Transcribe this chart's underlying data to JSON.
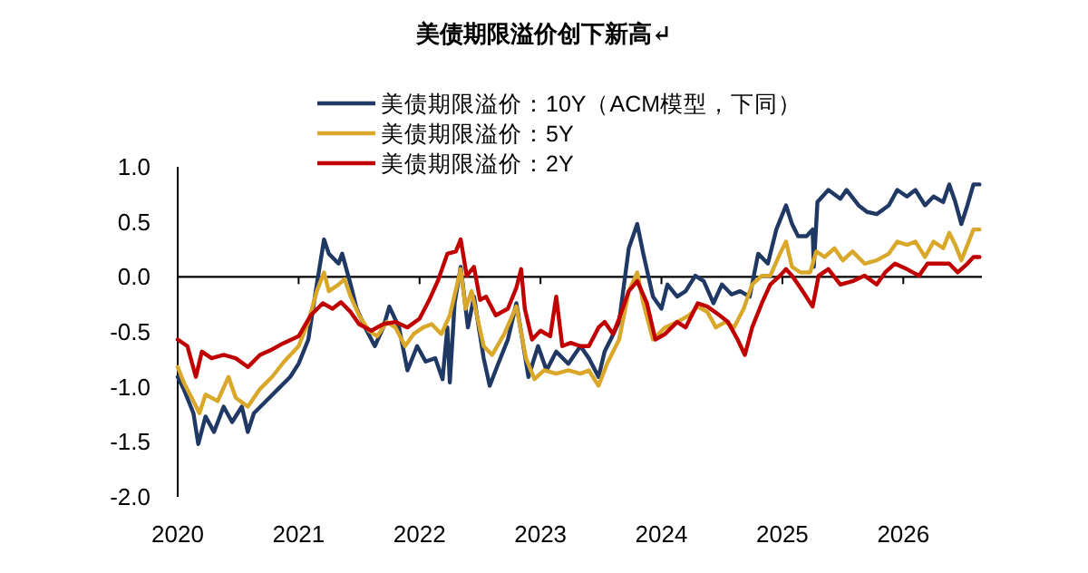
{
  "chart_data": {
    "type": "line",
    "title": "美债期限溢价创下新高↵",
    "xlim": [
      2020,
      2026.65
    ],
    "xticks": [
      2020,
      2021,
      2022,
      2023,
      2024,
      2025,
      2026
    ],
    "ylim": [
      -2,
      1
    ],
    "yticks": [
      {
        "value": -2,
        "label": "-2.0"
      },
      {
        "value": -1.5,
        "label": "-1.5"
      },
      {
        "value": -1,
        "label": "-1.0"
      },
      {
        "value": -0.5,
        "label": "-0.5"
      },
      {
        "value": 0,
        "label": "0.0"
      },
      {
        "value": 0.5,
        "label": "0.5"
      },
      {
        "value": 1,
        "label": "1.0"
      }
    ],
    "legend": "top",
    "marker": "none",
    "line_style": "solid",
    "series": [
      {
        "name": "美债期限溢价：10Y（ACM模型，下同）",
        "color": "#1f3864",
        "x": [
          2020.0,
          2020.05,
          2020.13,
          2020.17,
          2020.23,
          2020.3,
          2020.38,
          2020.45,
          2020.53,
          2020.58,
          2020.63,
          2020.73,
          2020.83,
          2020.93,
          2021.0,
          2021.08,
          2021.15,
          2021.21,
          2021.25,
          2021.33,
          2021.36,
          2021.43,
          2021.48,
          2021.55,
          2021.63,
          2021.7,
          2021.75,
          2021.83,
          2021.9,
          2021.98,
          2022.05,
          2022.13,
          2022.19,
          2022.23,
          2022.25,
          2022.29,
          2022.34,
          2022.4,
          2022.45,
          2022.53,
          2022.58,
          2022.65,
          2022.73,
          2022.8,
          2022.85,
          2022.9,
          2022.98,
          2023.05,
          2023.13,
          2023.23,
          2023.33,
          2023.4,
          2023.48,
          2023.53,
          2023.58,
          2023.65,
          2023.73,
          2023.8,
          2023.85,
          2023.93,
          2024.0,
          2024.05,
          2024.13,
          2024.2,
          2024.28,
          2024.35,
          2024.43,
          2024.5,
          2024.58,
          2024.65,
          2024.73,
          2024.8,
          2024.88,
          2024.95,
          2025.03,
          2025.08,
          2025.13,
          2025.2,
          2025.25,
          2025.26,
          2025.29,
          2025.38,
          2025.48,
          2025.53,
          2025.63,
          2025.7,
          2025.78,
          2025.88,
          2025.95,
          2026.03,
          2026.1,
          2026.18,
          2026.25,
          2026.33,
          2026.38,
          2026.43,
          2026.48,
          2026.53,
          2026.58,
          2026.63
        ],
        "values": [
          -0.91,
          -1.02,
          -1.24,
          -1.52,
          -1.27,
          -1.41,
          -1.18,
          -1.32,
          -1.18,
          -1.41,
          -1.24,
          -1.13,
          -1.02,
          -0.91,
          -0.79,
          -0.57,
          -0.07,
          0.34,
          0.21,
          0.12,
          0.21,
          -0.07,
          -0.29,
          -0.46,
          -0.63,
          -0.46,
          -0.27,
          -0.46,
          -0.85,
          -0.63,
          -0.77,
          -0.74,
          -0.93,
          -0.46,
          -0.96,
          -0.24,
          0.09,
          -0.46,
          -0.18,
          -0.74,
          -0.99,
          -0.79,
          -0.57,
          -0.24,
          -0.57,
          -0.91,
          -0.63,
          -0.85,
          -0.68,
          -0.79,
          -0.63,
          -0.74,
          -0.91,
          -0.68,
          -0.57,
          -0.41,
          0.26,
          0.48,
          0.21,
          -0.18,
          -0.29,
          -0.07,
          -0.18,
          -0.13,
          0.01,
          -0.04,
          -0.24,
          -0.07,
          -0.16,
          -0.13,
          -0.18,
          0.21,
          0.12,
          0.43,
          0.65,
          0.48,
          0.37,
          0.37,
          0.43,
          0.09,
          0.68,
          0.79,
          0.71,
          0.79,
          0.65,
          0.59,
          0.57,
          0.65,
          0.79,
          0.73,
          0.79,
          0.65,
          0.73,
          0.68,
          0.84,
          0.68,
          0.48,
          0.65,
          0.84,
          0.84
        ]
      },
      {
        "name": "美债期限溢价：5Y",
        "color": "#d9a72a",
        "x": [
          2020.0,
          2020.05,
          2020.13,
          2020.18,
          2020.23,
          2020.33,
          2020.42,
          2020.48,
          2020.58,
          2020.68,
          2020.78,
          2020.88,
          2021.0,
          2021.08,
          2021.15,
          2021.21,
          2021.25,
          2021.33,
          2021.38,
          2021.43,
          2021.5,
          2021.58,
          2021.65,
          2021.73,
          2021.8,
          2021.88,
          2021.95,
          2022.03,
          2022.1,
          2022.18,
          2022.25,
          2022.34,
          2022.38,
          2022.43,
          2022.53,
          2022.6,
          2022.7,
          2022.8,
          2022.88,
          2022.95,
          2023.03,
          2023.13,
          2023.23,
          2023.33,
          2023.4,
          2023.48,
          2023.55,
          2023.65,
          2023.73,
          2023.8,
          2023.85,
          2023.93,
          2024.03,
          2024.13,
          2024.23,
          2024.3,
          2024.38,
          2024.45,
          2024.53,
          2024.6,
          2024.68,
          2024.75,
          2024.83,
          2024.9,
          2024.98,
          2025.03,
          2025.08,
          2025.15,
          2025.23,
          2025.28,
          2025.35,
          2025.43,
          2025.5,
          2025.58,
          2025.68,
          2025.78,
          2025.88,
          2025.95,
          2026.03,
          2026.1,
          2026.18,
          2026.25,
          2026.33,
          2026.38,
          2026.43,
          2026.48,
          2026.53,
          2026.58,
          2026.63
        ],
        "values": [
          -0.82,
          -0.96,
          -1.13,
          -1.24,
          -1.07,
          -1.13,
          -0.91,
          -1.1,
          -1.18,
          -1.02,
          -0.91,
          -0.77,
          -0.63,
          -0.41,
          -0.13,
          0.04,
          -0.13,
          -0.07,
          -0.02,
          -0.18,
          -0.35,
          -0.49,
          -0.54,
          -0.41,
          -0.46,
          -0.63,
          -0.52,
          -0.46,
          -0.43,
          -0.52,
          -0.35,
          0.07,
          -0.29,
          -0.13,
          -0.63,
          -0.71,
          -0.52,
          -0.27,
          -0.74,
          -0.93,
          -0.85,
          -0.88,
          -0.85,
          -0.88,
          -0.85,
          -0.99,
          -0.79,
          -0.57,
          -0.13,
          0.04,
          -0.24,
          -0.57,
          -0.46,
          -0.41,
          -0.35,
          -0.27,
          -0.32,
          -0.46,
          -0.41,
          -0.46,
          -0.29,
          -0.07,
          0.01,
          0.01,
          0.21,
          0.32,
          0.09,
          0.04,
          0.04,
          0.23,
          0.18,
          0.26,
          0.15,
          0.23,
          0.12,
          0.15,
          0.21,
          0.32,
          0.29,
          0.32,
          0.18,
          0.32,
          0.26,
          0.4,
          0.29,
          0.15,
          0.29,
          0.43,
          0.43
        ]
      },
      {
        "name": "美债期限溢价：2Y",
        "color": "#c00000",
        "x": [
          2020.0,
          2020.08,
          2020.15,
          2020.2,
          2020.28,
          2020.38,
          2020.48,
          2020.58,
          2020.68,
          2020.78,
          2020.88,
          2021.0,
          2021.1,
          2021.2,
          2021.28,
          2021.35,
          2021.43,
          2021.5,
          2021.6,
          2021.7,
          2021.8,
          2021.9,
          2022.0,
          2022.08,
          2022.15,
          2022.23,
          2022.3,
          2022.34,
          2022.39,
          2022.45,
          2022.5,
          2022.55,
          2022.63,
          2022.73,
          2022.8,
          2022.84,
          2022.87,
          2022.93,
          2023.0,
          2023.08,
          2023.13,
          2023.18,
          2023.25,
          2023.33,
          2023.4,
          2023.48,
          2023.53,
          2023.6,
          2023.65,
          2023.73,
          2023.8,
          2023.88,
          2023.95,
          2024.03,
          2024.13,
          2024.2,
          2024.3,
          2024.38,
          2024.48,
          2024.55,
          2024.63,
          2024.69,
          2024.75,
          2024.83,
          2024.9,
          2024.98,
          2025.03,
          2025.08,
          2025.15,
          2025.25,
          2025.3,
          2025.38,
          2025.48,
          2025.58,
          2025.68,
          2025.78,
          2025.85,
          2025.93,
          2026.03,
          2026.13,
          2026.2,
          2026.3,
          2026.38,
          2026.45,
          2026.53,
          2026.58,
          2026.63
        ],
        "values": [
          -0.57,
          -0.63,
          -0.91,
          -0.68,
          -0.74,
          -0.71,
          -0.74,
          -0.82,
          -0.71,
          -0.66,
          -0.6,
          -0.54,
          -0.35,
          -0.24,
          -0.29,
          -0.23,
          -0.32,
          -0.43,
          -0.49,
          -0.43,
          -0.41,
          -0.46,
          -0.38,
          -0.21,
          -0.04,
          0.21,
          0.23,
          0.34,
          0.01,
          0.09,
          -0.21,
          -0.18,
          -0.35,
          -0.29,
          -0.1,
          0.07,
          -0.29,
          -0.57,
          -0.49,
          -0.54,
          -0.18,
          -0.63,
          -0.6,
          -0.63,
          -0.63,
          -0.46,
          -0.41,
          -0.52,
          -0.38,
          -0.13,
          -0.04,
          -0.24,
          -0.57,
          -0.52,
          -0.41,
          -0.46,
          -0.24,
          -0.27,
          -0.35,
          -0.41,
          -0.57,
          -0.71,
          -0.46,
          -0.24,
          -0.07,
          0.01,
          0.07,
          0.01,
          -0.1,
          -0.27,
          0.01,
          0.07,
          -0.07,
          -0.04,
          0.01,
          -0.07,
          0.04,
          0.12,
          0.07,
          0.01,
          0.12,
          0.12,
          0.12,
          0.04,
          0.12,
          0.18,
          0.18
        ]
      }
    ]
  }
}
